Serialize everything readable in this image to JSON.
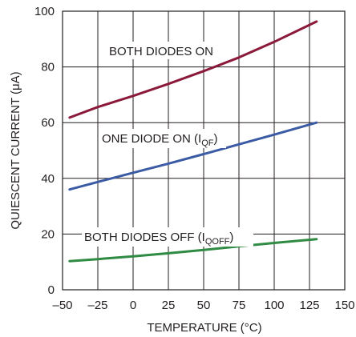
{
  "chart_data": {
    "type": "line",
    "title": "",
    "xlabel": "TEMPERATURE (°C)",
    "ylabel": "QUIESCENT CURRENT (μA)",
    "xlim": [
      -50,
      150
    ],
    "ylim": [
      0,
      100
    ],
    "x_ticks": [
      -50,
      -25,
      0,
      25,
      50,
      75,
      100,
      125,
      150
    ],
    "y_ticks": [
      0,
      20,
      40,
      60,
      80,
      100
    ],
    "x_tick_labels": [
      "–50",
      "–25",
      "0",
      "25",
      "50",
      "75",
      "100",
      "125",
      "150"
    ],
    "y_tick_labels": [
      "0",
      "20",
      "40",
      "60",
      "80",
      "100"
    ],
    "grid": true,
    "series": [
      {
        "name": "BOTH DIODES ON",
        "color": "#8b1a3a",
        "x": [
          -45,
          -25,
          0,
          25,
          50,
          75,
          100,
          130
        ],
        "y": [
          61.8,
          65.6,
          69.6,
          73.9,
          78.5,
          83.4,
          89.0,
          96.3
        ]
      },
      {
        "name": "ONE DIODE ON (IQF)",
        "color": "#3c5ba5",
        "x": [
          -45,
          -25,
          0,
          25,
          50,
          75,
          100,
          130
        ],
        "y": [
          36.0,
          38.7,
          42.0,
          45.3,
          48.7,
          52.2,
          55.7,
          60.0
        ]
      },
      {
        "name": "BOTH DIODES OFF (IQOFF)",
        "color": "#2f8b43",
        "x": [
          -45,
          -25,
          0,
          25,
          50,
          75,
          100,
          130
        ],
        "y": [
          10.3,
          11.0,
          12.0,
          13.1,
          14.3,
          15.6,
          16.8,
          18.2
        ]
      }
    ],
    "annotations": [
      {
        "main": "BOTH DIODES ON",
        "sub": "",
        "tail": ""
      },
      {
        "main": "ONE DIODE ON (I",
        "sub": "QF",
        "tail": ")"
      },
      {
        "main": "BOTH DIODES OFF (I",
        "sub": "QOFF",
        "tail": ")"
      }
    ]
  }
}
